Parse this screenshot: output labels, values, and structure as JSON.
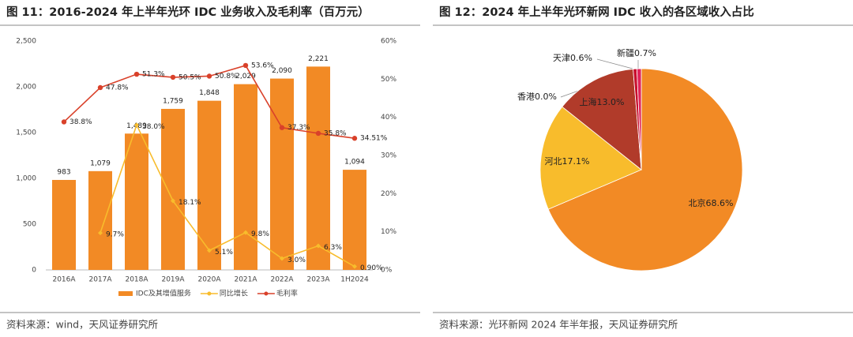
{
  "chart_data": [
    {
      "type": "bar_line",
      "title": "图 11：2016-2024 年上半年光环 IDC 业务收入及毛利率（百万元）",
      "categories": [
        "2016A",
        "2017A",
        "2018A",
        "2019A",
        "2020A",
        "2021A",
        "2022A",
        "2023A",
        "1H2024"
      ],
      "series": [
        {
          "name": "IDC及其增值服务",
          "color": "#f28a25",
          "kind": "bar",
          "values": [
            983,
            1079,
            1489,
            1759,
            1848,
            2029,
            2090,
            2221,
            1094
          ],
          "value_labels": [
            "983",
            "1,079",
            "1,489",
            "1,759",
            "1,848",
            "2,029",
            "2,090",
            "2,221",
            "1,094"
          ]
        },
        {
          "name": "同比增长",
          "color": "#f8bc2c",
          "kind": "line",
          "axis": "y2",
          "values": [
            null,
            9.7,
            38.0,
            18.1,
            5.1,
            9.8,
            3.0,
            6.3,
            0.9
          ],
          "value_labels": [
            null,
            "9.7%",
            "38.0%",
            "18.1%",
            "5.1%",
            "9.8%",
            "3.0%",
            "6.3%",
            "0.90%"
          ]
        },
        {
          "name": "毛利率",
          "color": "#d9412a",
          "kind": "line",
          "axis": "y2",
          "values": [
            38.8,
            47.8,
            51.3,
            50.5,
            50.8,
            53.6,
            37.3,
            35.8,
            34.51
          ],
          "value_labels": [
            "38.8%",
            "47.8%",
            "51.3%",
            "50.5%",
            "50.8%",
            "53.6%",
            "37.3%",
            "35.8%",
            "34.51%"
          ]
        }
      ],
      "ylim": [
        0,
        2500
      ],
      "yticks": [
        0,
        500,
        {
          "value": 1000,
          "label": "1,000"
        },
        {
          "value": 1500,
          "label": "1,500"
        },
        {
          "value": 2000,
          "label": "2,000"
        },
        {
          "value": 2500,
          "label": "2,500"
        }
      ],
      "y2lim": [
        0,
        60
      ],
      "y2ticks": [
        {
          "value": 0,
          "label": "0%"
        },
        {
          "value": 10,
          "label": "10%"
        },
        {
          "value": 20,
          "label": "20%"
        },
        {
          "value": 30,
          "label": "30%"
        },
        {
          "value": 40,
          "label": "40%"
        },
        {
          "value": 50,
          "label": "50%"
        },
        {
          "value": 60,
          "label": "60%"
        }
      ],
      "source": "资料来源：wind，天风证券研究所"
    },
    {
      "type": "pie",
      "title": "图 12：2024 年上半年光环新网 IDC 收入的各区域收入占比",
      "categories": [
        "北京",
        "河北",
        "上海",
        "香港",
        "天津",
        "新疆"
      ],
      "values": [
        68.6,
        17.1,
        13.0,
        0.0,
        0.6,
        0.7
      ],
      "value_labels": [
        "68.6%",
        "17.1%",
        "13.0%",
        "0.0%",
        "0.6%",
        "0.7%"
      ],
      "colors": [
        "#f28a25",
        "#f8bc2c",
        "#b13b2a",
        "#8a2a1c",
        "#c8102e",
        "#e0245a"
      ],
      "source": "资料来源：光环新网 2024 年半年报，天风证券研究所"
    }
  ]
}
